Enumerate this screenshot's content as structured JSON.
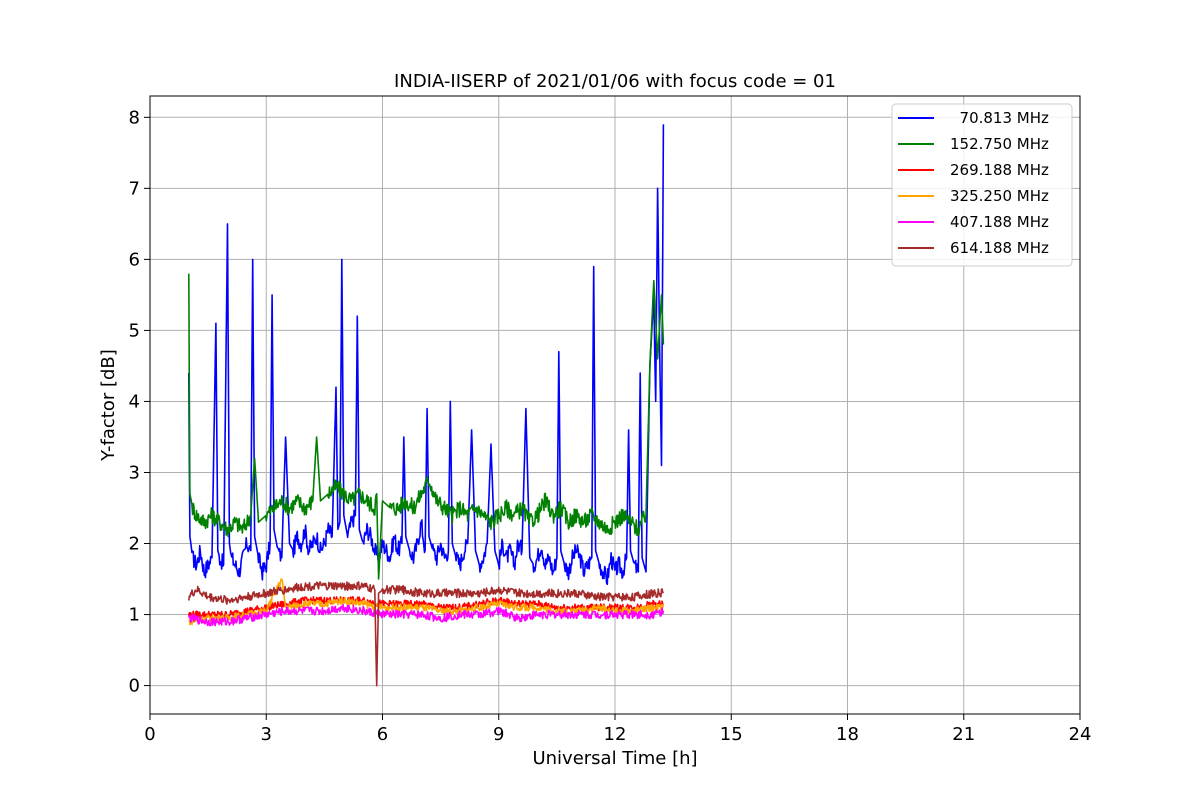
{
  "chart_data": {
    "type": "line",
    "title": "INDIA-IISERP of 2021/01/06 with focus code = 01",
    "xlabel": "Universal Time [h]",
    "ylabel": "Y-factor [dB]",
    "xlim": [
      0,
      24
    ],
    "ylim": [
      -0.4,
      8.3
    ],
    "xticks": [
      0,
      3,
      6,
      9,
      12,
      15,
      18,
      21,
      24
    ],
    "yticks": [
      0,
      1,
      2,
      3,
      4,
      5,
      6,
      7,
      8
    ],
    "xtick_labels": [
      "0",
      "3",
      "6",
      "9",
      "12",
      "15",
      "18",
      "21",
      "24"
    ],
    "ytick_labels": [
      "0",
      "1",
      "2",
      "3",
      "4",
      "5",
      "6",
      "7",
      "8"
    ],
    "grid": true,
    "legend_position": "top-right",
    "series": [
      {
        "name": "  70.813 MHz",
        "color": "#0000ff",
        "x": [
          1.0,
          1.03,
          1.1,
          1.2,
          1.3,
          1.4,
          1.5,
          1.6,
          1.7,
          1.75,
          1.8,
          1.9,
          2.0,
          2.05,
          2.1,
          2.2,
          2.3,
          2.4,
          2.5,
          2.6,
          2.65,
          2.7,
          2.8,
          2.9,
          3.0,
          3.1,
          3.15,
          3.2,
          3.3,
          3.4,
          3.5,
          3.6,
          3.7,
          3.8,
          3.9,
          4.0,
          4.1,
          4.2,
          4.3,
          4.4,
          4.5,
          4.6,
          4.7,
          4.8,
          4.85,
          4.9,
          4.95,
          5.0,
          5.1,
          5.2,
          5.3,
          5.35,
          5.4,
          5.5,
          5.6,
          5.7,
          5.8,
          5.9,
          6.0,
          6.1,
          6.2,
          6.3,
          6.4,
          6.5,
          6.55,
          6.6,
          6.7,
          6.8,
          6.9,
          7.0,
          7.1,
          7.15,
          7.2,
          7.3,
          7.4,
          7.5,
          7.6,
          7.7,
          7.75,
          7.8,
          7.9,
          8.0,
          8.1,
          8.2,
          8.3,
          8.4,
          8.5,
          8.6,
          8.7,
          8.8,
          8.9,
          9.0,
          9.1,
          9.2,
          9.3,
          9.4,
          9.5,
          9.6,
          9.7,
          9.8,
          9.9,
          10.0,
          10.1,
          10.2,
          10.3,
          10.4,
          10.5,
          10.55,
          10.6,
          10.7,
          10.8,
          10.9,
          11.0,
          11.1,
          11.2,
          11.3,
          11.4,
          11.45,
          11.5,
          11.6,
          11.7,
          11.8,
          11.9,
          12.0,
          12.1,
          12.2,
          12.3,
          12.35,
          12.4,
          12.5,
          12.6,
          12.65,
          12.7,
          12.8,
          12.9,
          13.0,
          13.05,
          13.1,
          13.15,
          13.2,
          13.25
        ],
        "y": [
          4.4,
          2.1,
          1.8,
          1.7,
          1.9,
          1.6,
          1.7,
          1.8,
          5.1,
          1.9,
          1.8,
          1.7,
          6.5,
          2.0,
          1.8,
          1.7,
          1.6,
          1.8,
          2.0,
          1.9,
          6.0,
          2.1,
          1.8,
          1.6,
          1.7,
          2.0,
          5.5,
          2.2,
          1.9,
          1.8,
          3.5,
          2.0,
          1.9,
          2.1,
          2.0,
          2.2,
          1.9,
          2.0,
          2.1,
          1.9,
          2.0,
          2.2,
          2.1,
          4.2,
          2.2,
          2.3,
          6.0,
          2.4,
          2.1,
          2.3,
          2.4,
          5.2,
          2.2,
          2.0,
          2.2,
          2.1,
          1.9,
          1.8,
          2.0,
          1.9,
          1.8,
          2.1,
          1.9,
          2.0,
          3.5,
          2.1,
          1.9,
          1.8,
          2.0,
          2.3,
          1.9,
          3.9,
          2.1,
          1.9,
          1.8,
          2.0,
          1.8,
          1.9,
          4.0,
          2.0,
          1.8,
          1.7,
          1.9,
          2.0,
          3.6,
          1.9,
          1.7,
          1.8,
          2.0,
          3.4,
          1.9,
          1.7,
          2.0,
          1.8,
          1.9,
          1.7,
          2.0,
          1.9,
          3.9,
          1.8,
          1.7,
          1.8,
          2.0,
          1.7,
          1.8,
          1.6,
          1.8,
          4.7,
          1.9,
          1.7,
          1.6,
          1.8,
          1.9,
          1.8,
          1.6,
          1.7,
          1.8,
          5.9,
          1.9,
          1.7,
          1.6,
          1.5,
          1.8,
          1.6,
          1.7,
          1.6,
          1.8,
          3.6,
          1.9,
          1.7,
          1.6,
          4.4,
          1.8,
          1.6,
          4.5,
          5.5,
          4.0,
          7.0,
          4.8,
          3.1,
          7.9
        ]
      },
      {
        "name": "152.750 MHz",
        "color": "#008000",
        "x": [
          1.0,
          1.03,
          1.1,
          1.2,
          1.4,
          1.6,
          1.8,
          2.0,
          2.2,
          2.4,
          2.6,
          2.7,
          2.8,
          3.0,
          3.2,
          3.4,
          3.6,
          3.8,
          4.0,
          4.2,
          4.3,
          4.4,
          4.6,
          4.8,
          5.0,
          5.2,
          5.4,
          5.6,
          5.8,
          5.85,
          5.9,
          6.0,
          6.2,
          6.4,
          6.6,
          6.8,
          7.0,
          7.2,
          7.4,
          7.6,
          7.8,
          8.0,
          8.2,
          8.4,
          8.6,
          8.8,
          9.0,
          9.2,
          9.4,
          9.6,
          9.8,
          10.0,
          10.2,
          10.4,
          10.6,
          10.8,
          11.0,
          11.2,
          11.4,
          11.6,
          11.8,
          12.0,
          12.2,
          12.4,
          12.6,
          12.8,
          12.9,
          13.0,
          13.1,
          13.2,
          13.25
        ],
        "y": [
          5.8,
          2.7,
          2.5,
          2.4,
          2.3,
          2.4,
          2.3,
          2.2,
          2.3,
          2.2,
          2.4,
          3.2,
          2.3,
          2.4,
          2.5,
          2.6,
          2.5,
          2.6,
          2.5,
          2.6,
          3.5,
          2.6,
          2.7,
          2.8,
          2.7,
          2.6,
          2.7,
          2.6,
          2.5,
          2.7,
          1.5,
          2.6,
          2.5,
          2.5,
          2.6,
          2.5,
          2.7,
          2.9,
          2.6,
          2.5,
          2.4,
          2.5,
          2.4,
          2.5,
          2.4,
          2.3,
          2.4,
          2.5,
          2.4,
          2.5,
          2.3,
          2.4,
          2.6,
          2.4,
          2.5,
          2.3,
          2.4,
          2.3,
          2.4,
          2.3,
          2.2,
          2.3,
          2.4,
          2.3,
          2.2,
          2.4,
          4.5,
          5.7,
          4.6,
          5.5,
          4.8
        ]
      },
      {
        "name": "269.188 MHz",
        "color": "#ff0000",
        "x": [
          1.0,
          1.5,
          2.0,
          2.5,
          3.0,
          3.5,
          4.0,
          4.5,
          5.0,
          5.5,
          6.0,
          6.5,
          7.0,
          7.5,
          8.0,
          8.5,
          9.0,
          9.5,
          10.0,
          10.5,
          11.0,
          11.5,
          12.0,
          12.5,
          13.0,
          13.25
        ],
        "y": [
          1.0,
          1.0,
          1.0,
          1.05,
          1.1,
          1.15,
          1.2,
          1.2,
          1.2,
          1.2,
          1.15,
          1.15,
          1.15,
          1.1,
          1.1,
          1.15,
          1.2,
          1.15,
          1.15,
          1.1,
          1.1,
          1.1,
          1.1,
          1.1,
          1.15,
          1.15
        ]
      },
      {
        "name": "325.250 MHz",
        "color": "#ffa500",
        "x": [
          1.0,
          1.5,
          2.0,
          2.5,
          3.0,
          3.4,
          3.5,
          4.0,
          4.5,
          5.0,
          5.5,
          6.0,
          6.5,
          7.0,
          7.5,
          8.0,
          8.5,
          9.0,
          9.5,
          10.0,
          10.5,
          11.0,
          11.5,
          12.0,
          12.5,
          13.0,
          13.25
        ],
        "y": [
          0.9,
          0.95,
          0.95,
          1.0,
          1.05,
          1.5,
          1.1,
          1.15,
          1.15,
          1.2,
          1.15,
          1.1,
          1.1,
          1.1,
          1.05,
          1.05,
          1.1,
          1.15,
          1.1,
          1.1,
          1.05,
          1.05,
          1.1,
          1.05,
          1.05,
          1.1,
          1.1
        ]
      },
      {
        "name": "407.188 MHz",
        "color": "#ff00ff",
        "x": [
          1.0,
          1.5,
          2.0,
          2.5,
          3.0,
          3.5,
          4.0,
          4.5,
          5.0,
          5.5,
          6.0,
          6.5,
          7.0,
          7.5,
          8.0,
          8.5,
          9.0,
          9.5,
          10.0,
          10.5,
          11.0,
          11.5,
          12.0,
          12.5,
          13.0,
          13.25
        ],
        "y": [
          0.95,
          0.9,
          0.9,
          0.95,
          1.0,
          1.05,
          1.05,
          1.05,
          1.1,
          1.05,
          1.0,
          1.0,
          1.0,
          0.95,
          1.0,
          1.0,
          1.05,
          0.95,
          1.0,
          1.0,
          1.0,
          1.0,
          1.0,
          1.0,
          1.0,
          1.05
        ]
      },
      {
        "name": "614.188 MHz",
        "color": "#a52a2a",
        "x": [
          1.0,
          1.2,
          1.5,
          2.0,
          2.5,
          3.0,
          3.5,
          4.0,
          4.5,
          5.0,
          5.5,
          5.8,
          5.85,
          5.9,
          6.0,
          6.5,
          7.0,
          7.5,
          8.0,
          8.5,
          9.0,
          9.5,
          10.0,
          10.5,
          11.0,
          11.5,
          12.0,
          12.5,
          13.0,
          13.25
        ],
        "y": [
          1.25,
          1.35,
          1.25,
          1.2,
          1.25,
          1.3,
          1.35,
          1.4,
          1.4,
          1.4,
          1.4,
          1.35,
          0.0,
          1.3,
          1.35,
          1.35,
          1.3,
          1.3,
          1.3,
          1.3,
          1.35,
          1.3,
          1.3,
          1.3,
          1.3,
          1.25,
          1.25,
          1.25,
          1.3,
          1.3
        ]
      }
    ]
  }
}
